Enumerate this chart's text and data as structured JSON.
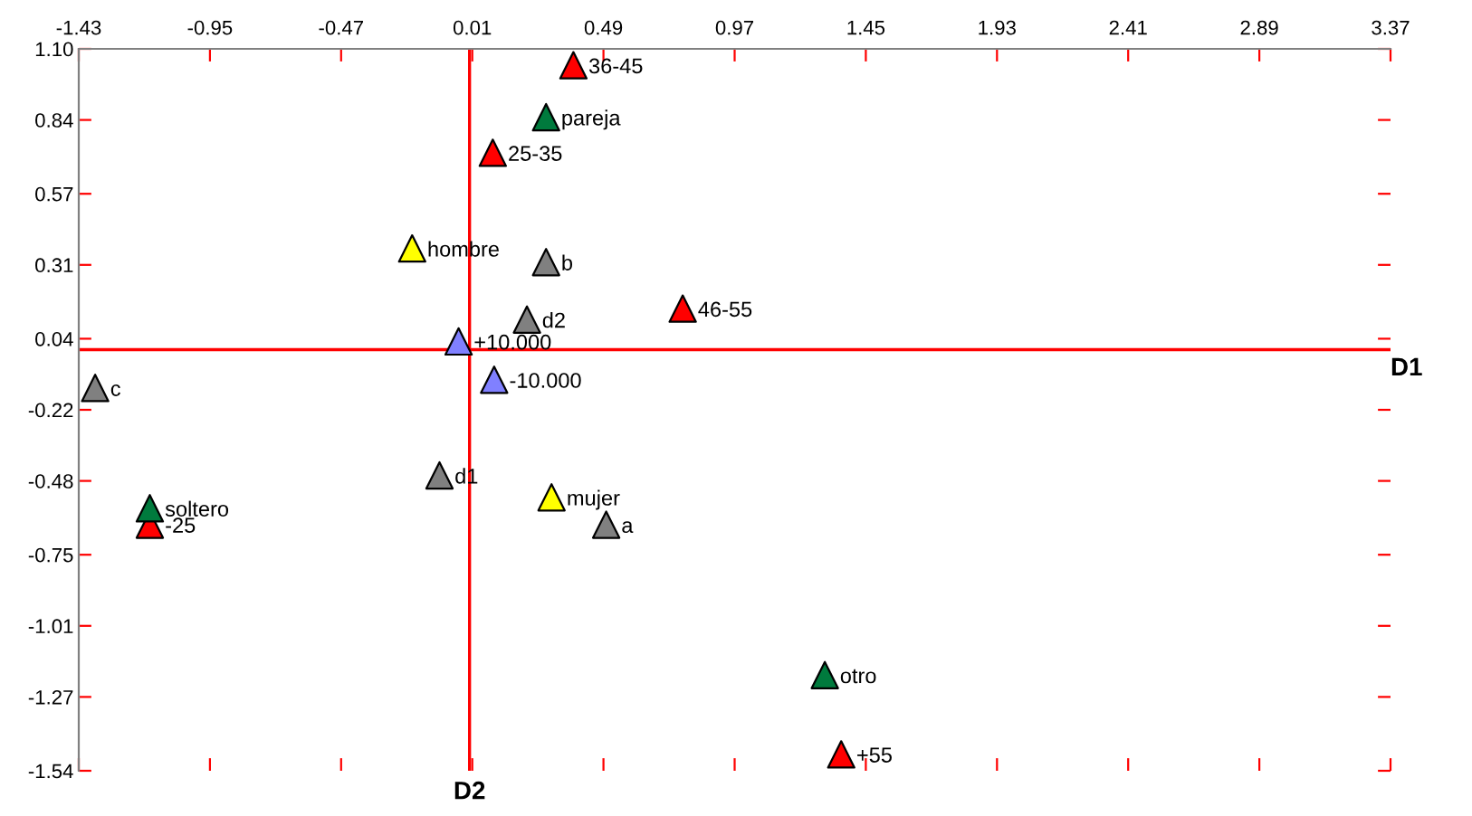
{
  "chart_data": {
    "type": "scatter",
    "marker": "triangle",
    "grid": false,
    "xlim": [
      -1.43,
      3.37
    ],
    "xticks": [
      -1.43,
      -0.95,
      -0.47,
      0.01,
      0.49,
      0.97,
      1.45,
      1.93,
      2.41,
      2.89,
      3.37
    ],
    "ylim": [
      -1.54,
      1.1
    ],
    "yticks": [
      {
        "value": 1.1,
        "label": "1.10"
      },
      0.84,
      0.57,
      0.31,
      0.04,
      -0.22,
      -0.48,
      -0.75,
      -1.01,
      -1.27,
      -1.54
    ],
    "ref_lines": [
      {
        "axis": "x",
        "value": 0,
        "color": "#ff0000",
        "label": "D2"
      },
      {
        "axis": "y",
        "value": 0,
        "color": "#ff0000",
        "label": "D1"
      }
    ],
    "series": [
      {
        "color": "#ff0000",
        "x": [
          0.38,
          0.085,
          0.78,
          -1.17,
          1.36
        ],
        "values": [
          1.04,
          0.72,
          0.15,
          -0.64,
          -1.48
        ]
      },
      {
        "color": "#007a3d",
        "x": [
          0.28,
          -1.17,
          1.3
        ],
        "values": [
          0.85,
          -0.58,
          -1.19
        ]
      },
      {
        "color": "#ffff00",
        "x": [
          -0.21,
          0.3
        ],
        "values": [
          0.37,
          -0.54
        ]
      },
      {
        "color": "#808080",
        "x": [
          0.28,
          0.21,
          -1.37,
          -0.11,
          0.5
        ],
        "values": [
          0.32,
          0.11,
          -0.14,
          -0.46,
          -0.64
        ]
      },
      {
        "color": "#8080ff",
        "x": [
          -0.04,
          0.09
        ],
        "values": [
          0.03,
          -0.11
        ]
      }
    ],
    "annotations": [
      {
        "text": "36-45",
        "x": 0.38,
        "y": 1.04
      },
      {
        "text": "25-35",
        "x": 0.085,
        "y": 0.72
      },
      {
        "text": "46-55",
        "x": 0.78,
        "y": 0.15
      },
      {
        "text": "-25",
        "x": -1.17,
        "y": -0.64
      },
      {
        "text": "+55",
        "x": 1.36,
        "y": -1.48
      },
      {
        "text": "pareja",
        "x": 0.28,
        "y": 0.85
      },
      {
        "text": "soltero",
        "x": -1.17,
        "y": -0.58
      },
      {
        "text": "otro",
        "x": 1.3,
        "y": -1.19
      },
      {
        "text": "hombre",
        "x": -0.21,
        "y": 0.37
      },
      {
        "text": "mujer",
        "x": 0.3,
        "y": -0.54
      },
      {
        "text": "b",
        "x": 0.28,
        "y": 0.32
      },
      {
        "text": "d2",
        "x": 0.21,
        "y": 0.11
      },
      {
        "text": "c",
        "x": -1.37,
        "y": -0.14
      },
      {
        "text": "d1",
        "x": -0.11,
        "y": -0.46
      },
      {
        "text": "a",
        "x": 0.5,
        "y": -0.64
      },
      {
        "text": "+10.000",
        "x": -0.04,
        "y": 0.03
      },
      {
        "text": "-10.000",
        "x": 0.09,
        "y": -0.11
      }
    ]
  }
}
